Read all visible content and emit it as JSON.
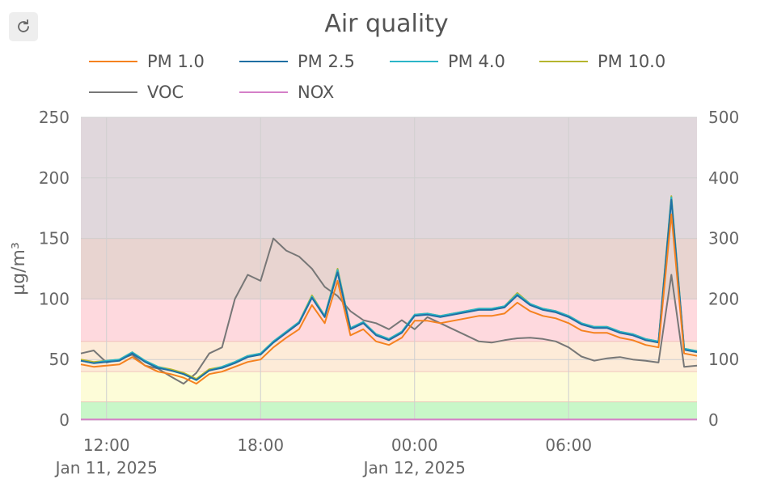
{
  "toolbar": {
    "refresh_icon": "refresh-icon"
  },
  "chart_data": {
    "type": "line",
    "title": "Air quality",
    "ylabel": "µg/m³",
    "ylim": [
      0,
      250
    ],
    "y2lim": [
      0,
      500
    ],
    "yticks": [
      0,
      50,
      100,
      150,
      200,
      250
    ],
    "y2ticks": [
      0,
      100,
      200,
      300,
      400,
      500
    ],
    "xlim": [
      "2025-01-11T11:00",
      "2025-01-12T11:00"
    ],
    "xticks": [
      {
        "t": "2025-01-11T12:00",
        "label": "12:00",
        "date": "Jan 11, 2025"
      },
      {
        "t": "2025-01-11T18:00",
        "label": "18:00",
        "date": ""
      },
      {
        "t": "2025-01-12T00:00",
        "label": "00:00",
        "date": "Jan 12, 2025"
      },
      {
        "t": "2025-01-12T06:00",
        "label": "06:00",
        "date": ""
      }
    ],
    "grid": true,
    "legend_position": "top",
    "bands": [
      {
        "from": 0,
        "to": 15,
        "color": "#c8f7c8"
      },
      {
        "from": 15,
        "to": 40,
        "color": "#fdfcd8"
      },
      {
        "from": 40,
        "to": 65,
        "color": "#fdebd8"
      },
      {
        "from": 65,
        "to": 100,
        "color": "#fed9de"
      },
      {
        "from": 100,
        "to": 150,
        "color": "#e8d4d0"
      },
      {
        "from": 150,
        "to": 250,
        "color": "#e0d7dc"
      }
    ],
    "x": [
      "2025-01-11T11:00",
      "2025-01-11T11:30",
      "2025-01-11T12:00",
      "2025-01-11T12:30",
      "2025-01-11T13:00",
      "2025-01-11T13:30",
      "2025-01-11T14:00",
      "2025-01-11T14:30",
      "2025-01-11T15:00",
      "2025-01-11T15:30",
      "2025-01-11T16:00",
      "2025-01-11T16:30",
      "2025-01-11T17:00",
      "2025-01-11T17:30",
      "2025-01-11T18:00",
      "2025-01-11T18:30",
      "2025-01-11T19:00",
      "2025-01-11T19:30",
      "2025-01-11T20:00",
      "2025-01-11T20:30",
      "2025-01-11T21:00",
      "2025-01-11T21:30",
      "2025-01-11T22:00",
      "2025-01-11T22:30",
      "2025-01-11T23:00",
      "2025-01-11T23:30",
      "2025-01-12T00:00",
      "2025-01-12T00:30",
      "2025-01-12T01:00",
      "2025-01-12T01:30",
      "2025-01-12T02:00",
      "2025-01-12T02:30",
      "2025-01-12T03:00",
      "2025-01-12T03:30",
      "2025-01-12T04:00",
      "2025-01-12T04:30",
      "2025-01-12T05:00",
      "2025-01-12T05:30",
      "2025-01-12T06:00",
      "2025-01-12T06:30",
      "2025-01-12T07:00",
      "2025-01-12T07:30",
      "2025-01-12T08:00",
      "2025-01-12T08:30",
      "2025-01-12T09:00",
      "2025-01-12T09:30",
      "2025-01-12T10:00",
      "2025-01-12T10:30",
      "2025-01-12T11:00"
    ],
    "series": [
      {
        "name": "PM 1.0",
        "axis": "left",
        "color": "#f5821f",
        "values": [
          46,
          44,
          45,
          46,
          52,
          45,
          40,
          38,
          35,
          30,
          38,
          40,
          44,
          48,
          50,
          60,
          68,
          75,
          95,
          80,
          115,
          70,
          75,
          65,
          62,
          68,
          82,
          82,
          80,
          82,
          84,
          86,
          86,
          88,
          97,
          90,
          86,
          84,
          80,
          74,
          72,
          72,
          68,
          66,
          62,
          60,
          170,
          55,
          53
        ]
      },
      {
        "name": "PM 2.5",
        "axis": "left",
        "color": "#1f6fa3",
        "values": [
          49,
          47,
          48,
          49,
          55,
          48,
          43,
          41,
          38,
          33,
          41,
          43,
          47,
          52,
          54,
          64,
          72,
          80,
          101,
          85,
          122,
          75,
          80,
          70,
          66,
          72,
          86,
          87,
          85,
          87,
          89,
          91,
          91,
          93,
          103,
          95,
          91,
          89,
          85,
          79,
          76,
          76,
          72,
          70,
          66,
          64,
          182,
          58,
          56
        ]
      },
      {
        "name": "PM 4.0",
        "axis": "left",
        "color": "#2bb5c8",
        "values": [
          49,
          47,
          49,
          50,
          56,
          49,
          44,
          41,
          38,
          33,
          41,
          44,
          48,
          53,
          55,
          65,
          73,
          81,
          102,
          86,
          124,
          76,
          81,
          71,
          67,
          73,
          87,
          88,
          86,
          88,
          90,
          92,
          92,
          94,
          104,
          96,
          92,
          90,
          86,
          80,
          77,
          77,
          73,
          71,
          67,
          65,
          184,
          59,
          57
        ]
      },
      {
        "name": "PM 10.0",
        "axis": "left",
        "color": "#b5b52e",
        "values": [
          50,
          48,
          49,
          50,
          56,
          49,
          44,
          42,
          39,
          34,
          42,
          44,
          48,
          53,
          55,
          65,
          73,
          81,
          103,
          86,
          125,
          76,
          81,
          71,
          67,
          73,
          87,
          88,
          86,
          88,
          90,
          92,
          92,
          94,
          105,
          96,
          92,
          90,
          86,
          80,
          77,
          77,
          73,
          71,
          67,
          65,
          185,
          59,
          57
        ]
      },
      {
        "name": "VOC",
        "axis": "right",
        "color": "#777777",
        "values": [
          110,
          115,
          95,
          100,
          108,
          90,
          85,
          72,
          60,
          78,
          110,
          120,
          200,
          240,
          230,
          300,
          280,
          270,
          250,
          220,
          205,
          180,
          165,
          160,
          150,
          165,
          150,
          170,
          160,
          150,
          140,
          130,
          128,
          132,
          135,
          136,
          134,
          130,
          120,
          105,
          98,
          102,
          104,
          100,
          98,
          95,
          240,
          88,
          90
        ]
      },
      {
        "name": "NOX",
        "axis": "right",
        "color": "#d580c8",
        "values": [
          1,
          1,
          1,
          1,
          1,
          1,
          1,
          1,
          1,
          1,
          1,
          1,
          1,
          1,
          1,
          1,
          1,
          1,
          1,
          1,
          1,
          1,
          1,
          1,
          1,
          1,
          1,
          1,
          1,
          1,
          1,
          1,
          1,
          1,
          1,
          1,
          1,
          1,
          1,
          1,
          1,
          1,
          1,
          1,
          1,
          1,
          1,
          1,
          1
        ]
      }
    ]
  }
}
